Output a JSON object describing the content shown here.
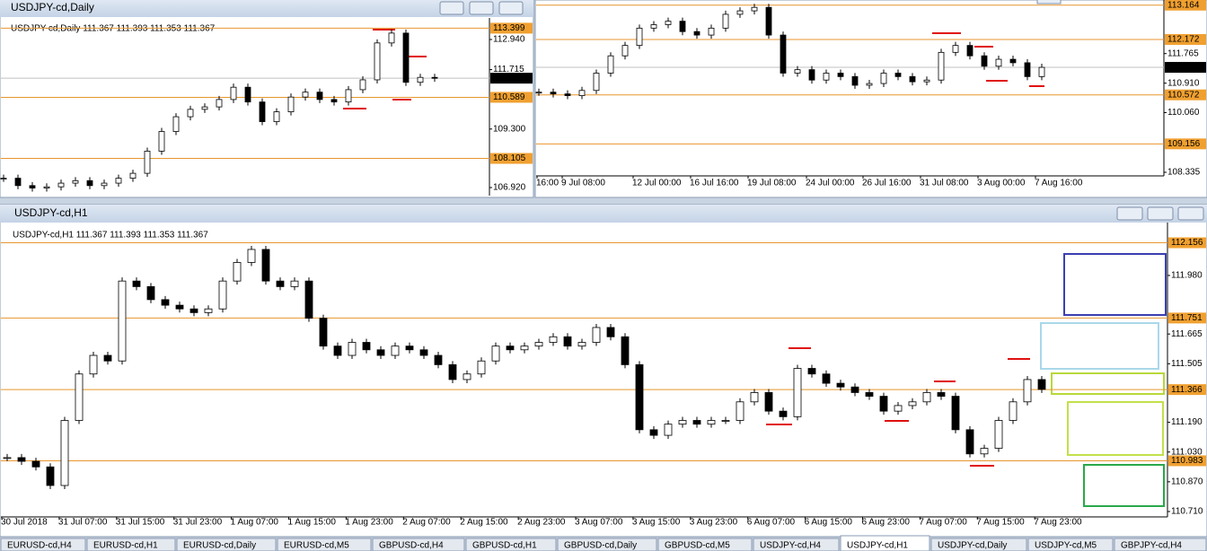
{
  "windows": [
    {
      "title": "USDJPY-cd,Daily",
      "info": "USDJPY-cd,Daily  111.367 111.393 111.353 111.367",
      "ylim": [
        106.592,
        113.743
      ],
      "price_labels": [
        {
          "value": 113.399,
          "label": "113.399",
          "style": "level"
        },
        {
          "value": 112.94,
          "label": "112.940",
          "style": "plain"
        },
        {
          "value": 111.715,
          "label": "111.715",
          "style": "plain"
        },
        {
          "value": 111.367,
          "label": "111.367",
          "style": "current"
        },
        {
          "value": 110.589,
          "label": "110.589",
          "style": "level"
        },
        {
          "value": 109.3,
          "label": "109.300",
          "style": "plain"
        },
        {
          "value": 108.105,
          "label": "108.105",
          "style": "level"
        },
        {
          "value": 106.92,
          "label": "106.920",
          "style": "plain"
        }
      ],
      "time_labels": [],
      "closes": [
        107.3,
        107.0,
        106.9,
        106.95,
        107.1,
        107.2,
        107.0,
        107.1,
        107.3,
        107.5,
        108.4,
        109.2,
        109.8,
        110.1,
        110.2,
        110.5,
        111.0,
        110.4,
        109.6,
        110.0,
        110.6,
        110.8,
        110.5,
        110.4,
        110.9,
        111.3,
        112.8,
        113.2,
        111.2,
        111.4,
        111.367
      ]
    },
    {
      "title": "",
      "info": "",
      "ylim": [
        108.231,
        113.261
      ],
      "price_labels": [
        {
          "value": 113.164,
          "label": "113.164",
          "style": "level"
        },
        {
          "value": 112.172,
          "label": "112.172",
          "style": "level"
        },
        {
          "value": 111.765,
          "label": "111.765",
          "style": "plain"
        },
        {
          "value": 111.367,
          "label": "111.367",
          "style": "current"
        },
        {
          "value": 110.91,
          "label": "110.910",
          "style": "plain"
        },
        {
          "value": 110.572,
          "label": "110.572",
          "style": "level"
        },
        {
          "value": 110.06,
          "label": "110.060",
          "style": "plain"
        },
        {
          "value": 109.156,
          "label": "109.156",
          "style": "level"
        },
        {
          "value": 108.335,
          "label": "108.335",
          "style": "plain"
        }
      ],
      "time_labels": [
        "16:00",
        "9 Jul 08:00",
        "12 Jul 00:00",
        "16 Jul 16:00",
        "19 Jul 08:00",
        "24 Jul 00:00",
        "26 Jul 16:00",
        "31 Jul 08:00",
        "3 Aug 00:00",
        "7 Aug 16:00"
      ],
      "closes": [
        110.65,
        110.6,
        110.55,
        110.7,
        111.2,
        111.7,
        112.0,
        112.5,
        112.6,
        112.7,
        112.4,
        112.3,
        112.5,
        112.9,
        113.0,
        113.1,
        112.3,
        111.2,
        111.3,
        111.0,
        111.2,
        111.1,
        110.85,
        110.9,
        111.2,
        111.1,
        110.95,
        111.0,
        111.8,
        112.0,
        111.7,
        111.4,
        111.6,
        111.5,
        111.1,
        111.367
      ]
    },
    {
      "title": "USDJPY-cd,H1",
      "info": "USDJPY-cd,H1  111.367 111.393 111.353 111.367",
      "ylim": [
        110.681,
        112.255
      ],
      "price_labels": [
        {
          "value": 112.156,
          "label": "112.156",
          "style": "level"
        },
        {
          "value": 111.98,
          "label": "111.980",
          "style": "plain"
        },
        {
          "value": 111.751,
          "label": "111.751",
          "style": "level"
        },
        {
          "value": 111.665,
          "label": "111.665",
          "style": "plain"
        },
        {
          "value": 111.505,
          "label": "111.505",
          "style": "plain"
        },
        {
          "value": 111.366,
          "label": "111.366",
          "style": "level"
        },
        {
          "value": 111.19,
          "label": "111.190",
          "style": "plain"
        },
        {
          "value": 111.03,
          "label": "111.030",
          "style": "plain"
        },
        {
          "value": 110.983,
          "label": "110.983",
          "style": "level"
        },
        {
          "value": 110.87,
          "label": "110.870",
          "style": "plain"
        },
        {
          "value": 110.71,
          "label": "110.710",
          "style": "plain"
        }
      ],
      "time_labels": [
        "30 Jul 2018",
        "31 Jul 07:00",
        "31 Jul 15:00",
        "31 Jul 23:00",
        "1 Aug 07:00",
        "1 Aug 15:00",
        "1 Aug 23:00",
        "2 Aug 07:00",
        "2 Aug 15:00",
        "2 Aug 23:00",
        "3 Aug 07:00",
        "3 Aug 15:00",
        "3 Aug 23:00",
        "6 Aug 07:00",
        "6 Aug 15:00",
        "6 Aug 23:00",
        "7 Aug 07:00",
        "7 Aug 15:00",
        "7 Aug 23:00"
      ],
      "closes": [
        111.0,
        110.98,
        110.95,
        110.85,
        111.2,
        111.45,
        111.55,
        111.52,
        111.95,
        111.92,
        111.85,
        111.82,
        111.8,
        111.78,
        111.8,
        111.95,
        112.05,
        112.12,
        111.95,
        111.92,
        111.95,
        111.75,
        111.6,
        111.55,
        111.62,
        111.58,
        111.55,
        111.6,
        111.58,
        111.55,
        111.5,
        111.42,
        111.45,
        111.52,
        111.6,
        111.58,
        111.6,
        111.62,
        111.65,
        111.6,
        111.62,
        111.7,
        111.65,
        111.5,
        111.15,
        111.12,
        111.18,
        111.2,
        111.18,
        111.2,
        111.2,
        111.3,
        111.35,
        111.25,
        111.22,
        111.48,
        111.45,
        111.4,
        111.38,
        111.35,
        111.33,
        111.25,
        111.28,
        111.3,
        111.35,
        111.33,
        111.15,
        111.02,
        111.05,
        111.2,
        111.3,
        111.42,
        111.367
      ]
    }
  ],
  "tabs": [
    {
      "label": "EURUSD-cd,H4",
      "active": false
    },
    {
      "label": "EURUSD-cd,H1",
      "active": false
    },
    {
      "label": "EURUSD-cd,Daily",
      "active": false
    },
    {
      "label": "EURUSD-cd,M5",
      "active": false
    },
    {
      "label": "GBPUSD-cd,H4",
      "active": false
    },
    {
      "label": "GBPUSD-cd,H1",
      "active": false
    },
    {
      "label": "GBPUSD-cd,Daily",
      "active": false
    },
    {
      "label": "GBPUSD-cd,M5",
      "active": false
    },
    {
      "label": "USDJPY-cd,H4",
      "active": false
    },
    {
      "label": "USDJPY-cd,H1",
      "active": true
    },
    {
      "label": "USDJPY-cd,Daily",
      "active": false
    },
    {
      "label": "USDJPY-cd,M5",
      "active": false
    },
    {
      "label": "GBPJPY-cd,H4",
      "active": false
    }
  ]
}
